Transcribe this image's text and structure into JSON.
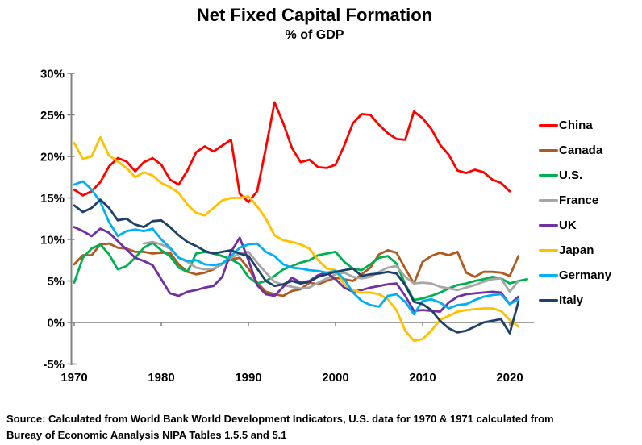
{
  "header": {
    "title": "Net Fixed Capital Formation",
    "subtitle": "% of GDP"
  },
  "source": {
    "line1": "Source:  Calculated from World Bank World Development Indicators, U.S. data for 1970 & 1971 calculated from",
    "line2": "Bureay of Economic Aanalysis NIPA Tables 1.5.5 and 5.1"
  },
  "colors": {
    "axis": "#808080",
    "text": "#000000"
  },
  "chart_data": {
    "type": "line",
    "title": "Net Fixed Capital Formation",
    "subtitle": "% of GDP",
    "xlabel": "",
    "ylabel": "",
    "grid": false,
    "legend_position": "right",
    "x_axis": {
      "min": 1970,
      "max": 2022,
      "ticks": [
        1970,
        1980,
        1990,
        2000,
        2010,
        2020
      ]
    },
    "y_axis": {
      "min": -5,
      "max": 30,
      "ticks": [
        {
          "label": "30%",
          "value": 30
        },
        {
          "label": "25%",
          "value": 25
        },
        {
          "label": "20%",
          "value": 20
        },
        {
          "label": "15%",
          "value": 15
        },
        {
          "label": "10%",
          "value": 10
        },
        {
          "label": "5%",
          "value": 5
        },
        {
          "label": "0%",
          "value": 0
        },
        {
          "label": "-5%",
          "value": -5
        }
      ]
    },
    "series": [
      {
        "name": "China",
        "color": "#FF0000",
        "start_year": 1970,
        "values": [
          16.0,
          15.3,
          15.8,
          16.9,
          18.8,
          19.8,
          19.4,
          18.2,
          19.3,
          19.8,
          19.0,
          17.2,
          16.6,
          18.3,
          20.5,
          21.2,
          20.6,
          21.3,
          22.0,
          15.5,
          14.5,
          15.8,
          21.0,
          26.5,
          24.0,
          21.0,
          19.3,
          19.6,
          18.7,
          18.6,
          19.0,
          21.3,
          24.0,
          25.1,
          25.0,
          23.8,
          22.8,
          22.1,
          22.0,
          25.4,
          24.6,
          23.3,
          21.4,
          20.2,
          18.3,
          18.0,
          18.4,
          18.1,
          17.2,
          16.8,
          15.8
        ]
      },
      {
        "name": "Canada",
        "color": "#AE5A21",
        "start_year": 1970,
        "values": [
          7.0,
          8.1,
          8.1,
          9.4,
          9.5,
          9.0,
          8.9,
          8.5,
          8.5,
          8.3,
          8.4,
          8.4,
          7.0,
          6.1,
          5.8,
          6.0,
          6.4,
          7.1,
          7.6,
          7.8,
          6.5,
          4.8,
          3.7,
          3.4,
          3.2,
          3.8,
          4.0,
          4.8,
          4.6,
          5.0,
          5.4,
          5.2,
          5.0,
          5.8,
          6.6,
          8.2,
          8.7,
          8.4,
          6.5,
          4.7,
          7.3,
          8.0,
          8.4,
          8.1,
          8.5,
          6.0,
          5.5,
          6.1,
          6.1,
          6.0,
          5.6,
          8.0
        ]
      },
      {
        "name": "U.S.",
        "color": "#00B050",
        "start_year": 1970,
        "values": [
          4.8,
          7.8,
          8.9,
          9.4,
          8.2,
          6.4,
          6.8,
          7.8,
          9.0,
          9.6,
          8.7,
          8.0,
          6.6,
          6.1,
          8.3,
          8.5,
          8.3,
          8.0,
          7.6,
          7.0,
          5.5,
          4.7,
          5.0,
          5.6,
          6.4,
          6.8,
          7.2,
          7.5,
          8.1,
          8.3,
          8.5,
          7.3,
          6.5,
          6.3,
          7.0,
          7.8,
          8.0,
          7.1,
          4.6,
          2.7,
          2.9,
          3.2,
          3.6,
          4.1,
          4.5,
          4.7,
          5.0,
          5.2,
          5.5,
          5.3,
          4.7,
          5.0,
          5.2
        ]
      },
      {
        "name": "France",
        "color": "#A6A6A6",
        "start_year": 1978,
        "values": [
          9.5,
          9.7,
          9.4,
          8.9,
          7.8,
          7.3,
          6.6,
          6.4,
          6.5,
          7.0,
          7.8,
          8.3,
          8.5,
          7.2,
          6.0,
          4.9,
          4.5,
          4.3,
          4.1,
          4.2,
          4.8,
          5.3,
          5.8,
          6.0,
          5.5,
          5.3,
          5.5,
          6.1,
          6.6,
          6.8,
          5.5,
          4.7,
          4.8,
          4.7,
          4.3,
          4.1,
          3.9,
          4.2,
          4.5,
          4.9,
          5.2,
          5.3,
          3.7,
          5.0
        ]
      },
      {
        "name": "UK",
        "color": "#7030A0",
        "start_year": 1970,
        "values": [
          11.5,
          11.0,
          10.4,
          11.3,
          10.8,
          9.8,
          8.8,
          7.8,
          7.4,
          6.9,
          5.2,
          3.5,
          3.2,
          3.7,
          3.9,
          4.2,
          4.4,
          5.5,
          8.5,
          10.2,
          7.5,
          4.5,
          3.4,
          3.2,
          4.3,
          5.4,
          4.8,
          5.0,
          5.7,
          6.0,
          5.2,
          4.2,
          3.7,
          3.9,
          4.2,
          4.4,
          4.6,
          4.7,
          3.2,
          1.4,
          1.5,
          1.4,
          1.3,
          2.4,
          3.1,
          3.4,
          3.5,
          3.6,
          3.7,
          3.6,
          2.2,
          3.1
        ]
      },
      {
        "name": "Japan",
        "color": "#FFC000",
        "start_year": 1970,
        "values": [
          21.6,
          19.7,
          20.0,
          22.3,
          20.1,
          19.4,
          18.6,
          17.5,
          18.1,
          17.7,
          16.8,
          16.3,
          15.6,
          14.2,
          13.2,
          12.9,
          13.8,
          14.7,
          15.0,
          15.0,
          15.2,
          14.0,
          12.5,
          10.5,
          9.9,
          9.7,
          9.4,
          8.9,
          7.5,
          6.5,
          6.3,
          4.6,
          3.9,
          3.6,
          3.6,
          3.4,
          2.8,
          1.5,
          -1.0,
          -2.2,
          -2.0,
          -1.0,
          0.3,
          0.8,
          1.3,
          1.5,
          1.6,
          1.7,
          1.7,
          1.4,
          0.3,
          -0.5
        ]
      },
      {
        "name": "Germany",
        "color": "#00B0F0",
        "start_year": 1970,
        "values": [
          16.6,
          17.0,
          16.0,
          14.5,
          12.1,
          10.4,
          11.0,
          11.2,
          11.0,
          11.3,
          10.0,
          9.0,
          7.8,
          7.4,
          7.5,
          7.0,
          6.9,
          7.1,
          8.0,
          9.0,
          9.4,
          9.5,
          8.5,
          8.0,
          7.0,
          6.6,
          6.5,
          6.3,
          6.2,
          6.0,
          6.2,
          5.2,
          3.6,
          2.6,
          2.1,
          1.9,
          3.2,
          3.4,
          2.5,
          1.0,
          2.6,
          2.8,
          2.4,
          1.7,
          2.1,
          2.2,
          2.7,
          3.1,
          3.3,
          3.4,
          2.2,
          2.8
        ]
      },
      {
        "name": "Italy",
        "color": "#1F4068",
        "start_year": 1970,
        "values": [
          14.1,
          13.3,
          13.8,
          14.8,
          13.8,
          12.3,
          12.5,
          11.8,
          11.5,
          12.2,
          12.3,
          11.5,
          10.5,
          9.7,
          9.2,
          8.6,
          8.3,
          8.5,
          8.7,
          8.3,
          8.0,
          6.5,
          5.0,
          4.4,
          4.6,
          5.0,
          4.7,
          4.9,
          5.5,
          5.8,
          6.1,
          6.3,
          6.5,
          5.6,
          5.8,
          5.9,
          6.1,
          5.9,
          4.5,
          2.5,
          2.2,
          1.5,
          0.2,
          -0.7,
          -1.2,
          -1.0,
          -0.5,
          0.0,
          0.2,
          0.4,
          -1.3,
          2.5
        ]
      }
    ]
  }
}
